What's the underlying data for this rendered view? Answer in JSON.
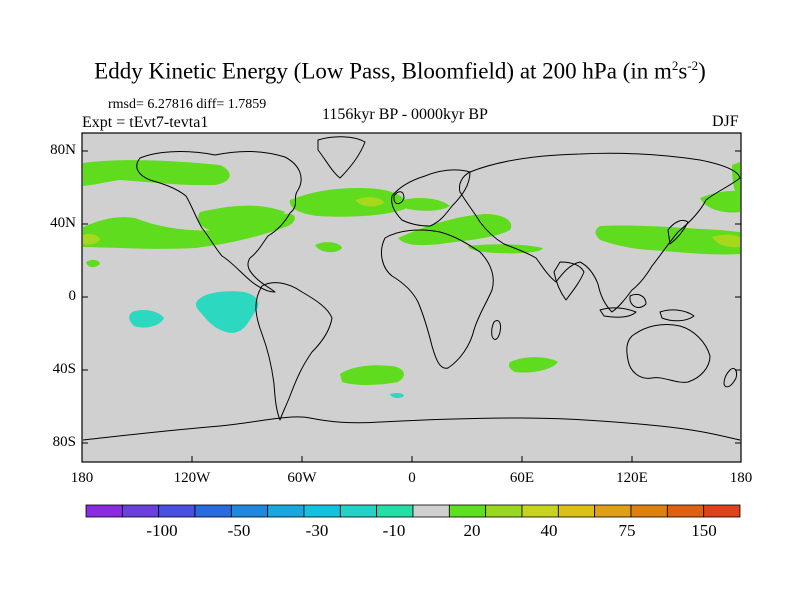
{
  "title": {
    "main": "Eddy Kinetic Energy (Low Pass, Bloomfield) at 200 hPa (in m",
    "sup1": "2",
    "mid": "s",
    "sup2": "-2",
    "end": ")"
  },
  "stats": "rmsd= 6.27816 diff= 1.7859",
  "expt": "Expt = tEvt7-tevta1",
  "period": "1156kyr BP - 0000kyr BP",
  "season": "DJF",
  "axes": {
    "lat_labels": [
      "80N",
      "40N",
      "0",
      "40S",
      "80S"
    ],
    "lon_labels": [
      "180",
      "120W",
      "60W",
      "0",
      "60E",
      "120E",
      "180"
    ]
  },
  "colorbar": {
    "labels": [
      "-100",
      "-50",
      "-30",
      "-10",
      "20",
      "40",
      "75",
      "150"
    ],
    "colors": [
      "#8a2be2",
      "#6a3fe0",
      "#4a4fe4",
      "#2a6ae0",
      "#1e88e0",
      "#18a8e0",
      "#10c4e0",
      "#20d4c8",
      "#20e0a8",
      "#d0d0d0",
      "#5ee01e",
      "#9ad81e",
      "#c8d41a",
      "#dcc014",
      "#e0a014",
      "#e0800c",
      "#e06010",
      "#e0401a"
    ]
  },
  "colors": {
    "land_ocean": "#d0d0d0",
    "green": "#60dc1e",
    "yellowgreen": "#a8d81c",
    "cyan": "#2cd8c0",
    "coast": "#000000"
  }
}
